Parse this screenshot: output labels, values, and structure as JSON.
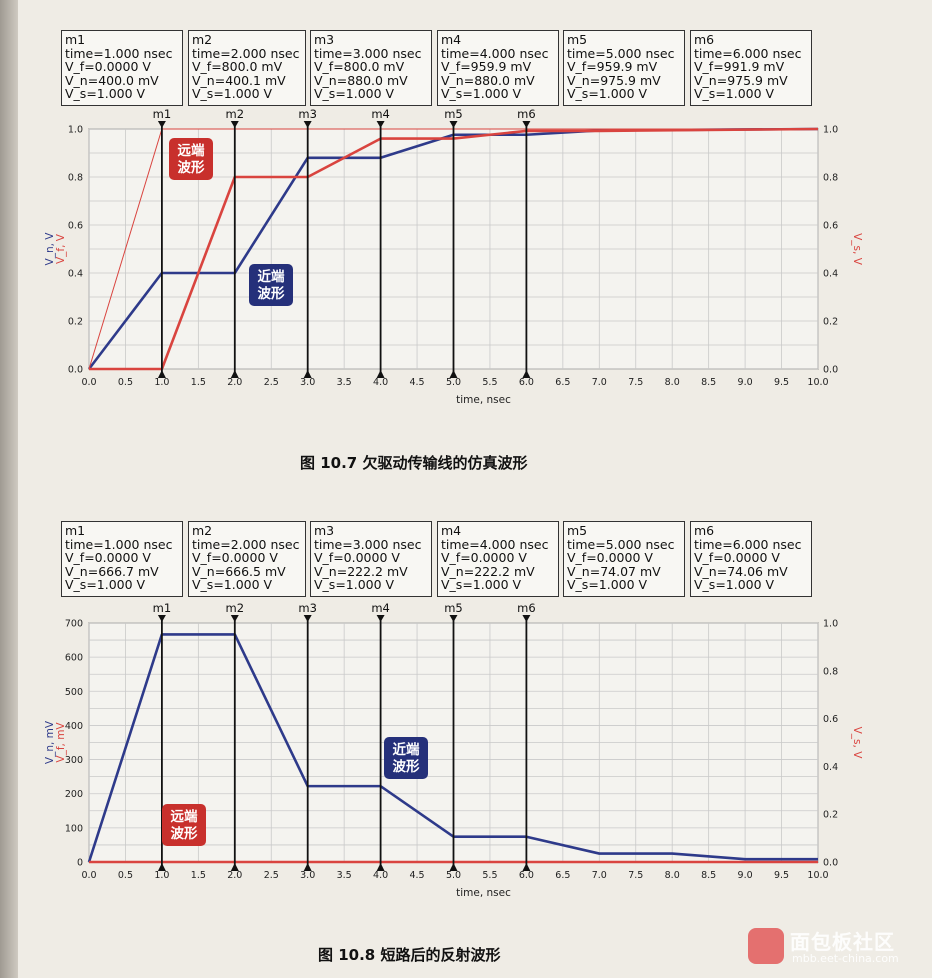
{
  "figures": [
    {
      "caption": "图 10.7   欠驱动传输线的仿真波形",
      "markers": [
        {
          "name": "m1",
          "lines": [
            "m1",
            "time=1.000 nsec",
            "V_f=0.0000 V",
            "V_n=400.0 mV",
            "V_s=1.000 V"
          ]
        },
        {
          "name": "m2",
          "lines": [
            "m2",
            "time=2.000 nsec",
            "V_f=800.0 mV",
            "V_n=400.1 mV",
            "V_s=1.000 V"
          ]
        },
        {
          "name": "m3",
          "lines": [
            "m3",
            "time=3.000 nsec",
            "V_f=800.0 mV",
            "V_n=880.0 mV",
            "V_s=1.000 V"
          ]
        },
        {
          "name": "m4",
          "lines": [
            "m4",
            "time=4.000 nsec",
            "V_f=959.9 mV",
            "V_n=880.0 mV",
            "V_s=1.000 V"
          ]
        },
        {
          "name": "m5",
          "lines": [
            "m5",
            "time=5.000 nsec",
            "V_f=959.9 mV",
            "V_n=975.9 mV",
            "V_s=1.000 V"
          ]
        },
        {
          "name": "m6",
          "lines": [
            "m6",
            "time=6.000 nsec",
            "V_f=991.9 mV",
            "V_n=975.9 mV",
            "V_s=1.000 V"
          ]
        }
      ],
      "annotations": [
        {
          "text": [
            "远端",
            "波形"
          ],
          "color": "#c8302c"
        },
        {
          "text": [
            "近端",
            "波形"
          ],
          "color": "#25307a"
        }
      ]
    },
    {
      "caption": "图 10.8   短路后的反射波形",
      "markers": [
        {
          "name": "m1",
          "lines": [
            "m1",
            "time=1.000 nsec",
            "V_f=0.0000 V",
            "V_n=666.7 mV",
            "V_s=1.000 V"
          ]
        },
        {
          "name": "m2",
          "lines": [
            "m2",
            "time=2.000 nsec",
            "V_f=0.0000 V",
            "V_n=666.5 mV",
            "V_s=1.000 V"
          ]
        },
        {
          "name": "m3",
          "lines": [
            "m3",
            "time=3.000 nsec",
            "V_f=0.0000 V",
            "V_n=222.2 mV",
            "V_s=1.000 V"
          ]
        },
        {
          "name": "m4",
          "lines": [
            "m4",
            "time=4.000 nsec",
            "V_f=0.0000 V",
            "V_n=222.2 mV",
            "V_s=1.000 V"
          ]
        },
        {
          "name": "m5",
          "lines": [
            "m5",
            "time=5.000 nsec",
            "V_f=0.0000 V",
            "V_n=74.07 mV",
            "V_s=1.000 V"
          ]
        },
        {
          "name": "m6",
          "lines": [
            "m6",
            "time=6.000 nsec",
            "V_f=0.0000 V",
            "V_n=74.06 mV",
            "V_s=1.000  V"
          ]
        }
      ],
      "annotations": [
        {
          "text": [
            "远端",
            "波形"
          ],
          "color": "#c8302c"
        },
        {
          "text": [
            "近端",
            "波形"
          ],
          "color": "#25307a"
        }
      ]
    }
  ],
  "watermark": {
    "title": "面包板社区",
    "url": "mbb.eet-china.com"
  },
  "chart_data": [
    {
      "type": "line",
      "xlabel": "time, nsec",
      "ylabel_left": [
        "V_n, V",
        "V_f, V"
      ],
      "ylabel_right": "V_s, V",
      "xlim": [
        0,
        10
      ],
      "ylim_left": [
        0,
        1.0
      ],
      "ylim_right": [
        0,
        1.0
      ],
      "x_ticks": [
        "0.0",
        "0.5",
        "1.0",
        "1.5",
        "2.0",
        "2.5",
        "3.0",
        "3.5",
        "4.0",
        "4.5",
        "5.0",
        "5.5",
        "6.0",
        "6.5",
        "7.0",
        "7.5",
        "8.0",
        "8.5",
        "9.0",
        "9.5",
        "10.0"
      ],
      "y_ticks_left": [
        "0.0",
        "0.2",
        "0.4",
        "0.6",
        "0.8",
        "1.0"
      ],
      "y_ticks_right": [
        "0.0",
        "0.2",
        "0.4",
        "0.6",
        "0.8",
        "1.0"
      ],
      "markers_x": [
        1,
        2,
        3,
        4,
        5,
        6
      ],
      "marker_labels": [
        "m1",
        "m2",
        "m3",
        "m4",
        "m5",
        "m6"
      ],
      "series": [
        {
          "color": "#2e3a8a",
          "axis": "left",
          "x": [
            0,
            1,
            2,
            3,
            4,
            5,
            6,
            7,
            8,
            10
          ],
          "y": [
            0,
            0.4,
            0.4,
            0.88,
            0.88,
            0.976,
            0.976,
            0.994,
            0.996,
            1.0
          ]
        },
        {
          "color": "#d9443f",
          "axis": "left",
          "x": [
            0,
            1,
            2,
            3,
            4,
            5,
            6,
            7,
            10
          ],
          "y": [
            0,
            0,
            0.8,
            0.8,
            0.96,
            0.96,
            0.992,
            0.992,
            1.0
          ]
        },
        {
          "color": "#d9443f",
          "axis": "right",
          "x": [
            0,
            1,
            10
          ],
          "y": [
            0,
            1.0,
            1.0
          ],
          "thin": true
        }
      ]
    },
    {
      "type": "line",
      "xlabel": "time, nsec",
      "ylabel_left": [
        "V_n, mV",
        "V_f, mV"
      ],
      "ylabel_right": "V_s, V",
      "xlim": [
        0,
        10
      ],
      "ylim_left": [
        0,
        700
      ],
      "ylim_right": [
        0,
        1.0
      ],
      "x_ticks": [
        "0.0",
        "0.5",
        "1.0",
        "1.5",
        "2.0",
        "2.5",
        "3.0",
        "3.5",
        "4.0",
        "4.5",
        "5.0",
        "5.5",
        "6.0",
        "6.5",
        "7.0",
        "7.5",
        "8.0",
        "8.5",
        "9.0",
        "9.5",
        "10.0"
      ],
      "y_ticks_left": [
        "0",
        "100",
        "200",
        "300",
        "400",
        "500",
        "600",
        "700"
      ],
      "y_ticks_right": [
        "0.0",
        "0.2",
        "0.4",
        "0.6",
        "0.8",
        "1.0"
      ],
      "markers_x": [
        1,
        2,
        3,
        4,
        5,
        6
      ],
      "marker_labels": [
        "m1",
        "m2",
        "m3",
        "m4",
        "m5",
        "m6"
      ],
      "series": [
        {
          "color": "#2e3a8a",
          "axis": "left",
          "x": [
            0,
            1,
            2,
            3,
            4,
            5,
            6,
            7,
            8,
            9,
            10
          ],
          "y": [
            0,
            666.7,
            666.5,
            222.2,
            222.2,
            74.07,
            74.06,
            24.7,
            24.7,
            8.2,
            8.2
          ]
        },
        {
          "color": "#d9443f",
          "axis": "left",
          "x": [
            0,
            10
          ],
          "y": [
            0,
            0
          ]
        }
      ]
    }
  ]
}
